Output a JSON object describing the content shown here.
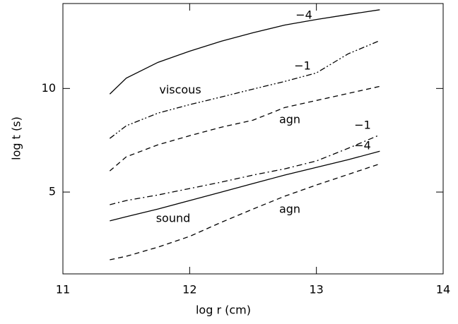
{
  "chart_data": {
    "type": "line",
    "x_label": "log r (cm)",
    "y_label": "log t (s)",
    "x": [
      11.37,
      11.5,
      11.75,
      12,
      12.25,
      12.5,
      12.75,
      13,
      13.25,
      13.5
    ],
    "series": [
      {
        "color": "#000000",
        "style": "solid",
        "values": [
          9.73,
          10.5,
          11.26,
          11.8,
          12.28,
          12.69,
          13.06,
          13.33,
          13.57,
          13.8
        ]
      },
      {
        "color": "#000000",
        "style": "dashdotdot",
        "values": [
          7.59,
          8.2,
          8.81,
          9.22,
          9.59,
          9.97,
          10.34,
          10.75,
          11.67,
          12.31
        ]
      },
      {
        "color": "#000000",
        "style": "dash",
        "values": [
          6.02,
          6.7,
          7.28,
          7.72,
          8.13,
          8.47,
          9.08,
          9.42,
          9.76,
          10.1
        ]
      },
      {
        "color": "#000000",
        "style": "dashdot",
        "values": [
          4.39,
          4.59,
          4.86,
          5.17,
          5.48,
          5.82,
          6.12,
          6.5,
          7.11,
          7.76
        ]
      },
      {
        "color": "#000000",
        "style": "solid",
        "values": [
          3.61,
          3.81,
          4.18,
          4.59,
          5.0,
          5.41,
          5.82,
          6.19,
          6.56,
          6.97
        ]
      },
      {
        "color": "#000000",
        "style": "dash",
        "values": [
          1.73,
          1.9,
          2.34,
          2.86,
          3.54,
          4.18,
          4.8,
          5.34,
          5.85,
          6.36
        ]
      }
    ],
    "annotations": [
      "−4",
      "−1",
      "viscous",
      "agn",
      "−1",
      "−4",
      "sound",
      "agn"
    ],
    "xlim": [
      11,
      14
    ],
    "ylim": [
      1.05,
      14.1
    ],
    "xticks": [
      11,
      12,
      13,
      14
    ],
    "yticks": [
      5,
      10
    ]
  }
}
